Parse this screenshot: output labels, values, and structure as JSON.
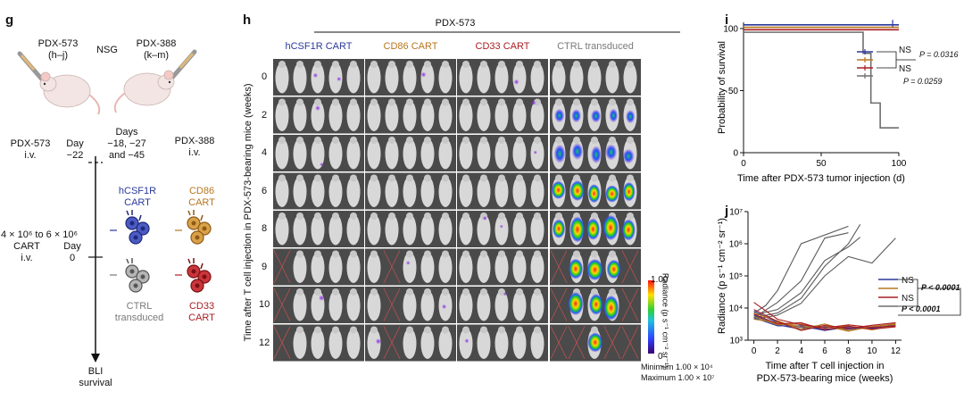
{
  "panel_g": {
    "label": "g",
    "pdx573_name": "PDX-573",
    "pdx573_sub": "(h–j)",
    "strain": "NSG",
    "pdx388_name": "PDX-388",
    "pdx388_sub": "(k–m)",
    "left_line1": "PDX-573",
    "left_line2": "i.v.",
    "day_label": "Day",
    "day_value": "−22",
    "days_label": "Days",
    "days_line2": "−18, −27",
    "days_line3": "and −45",
    "right_line1": "PDX-388",
    "right_line2": "i.v.",
    "dose_line1": "4 × 10⁶ to 6 × 10⁶",
    "dose_line2": "CART",
    "dose_line3": "i.v.",
    "day0_label": "Day",
    "day0_value": "0",
    "hcsf1r_1": "hCSF1R",
    "hcsf1r_2": "CART",
    "cd86_1": "CD86",
    "cd86_2": "CART",
    "ctrl_1": "CTRL",
    "ctrl_2": "transduced",
    "cd33_1": "CD33",
    "cd33_2": "CART",
    "end_1": "BLI",
    "end_2": "survival"
  },
  "panel_h": {
    "label": "h",
    "title": "PDX-573",
    "groups": [
      {
        "name": "hCSF1R CART",
        "color": "#2b3a9c"
      },
      {
        "name": "CD86 CART",
        "color": "#b8761f"
      },
      {
        "name": "CD33 CART",
        "color": "#a91e23"
      },
      {
        "name": "CTRL transduced",
        "color": "#7a7a7a"
      }
    ],
    "weeks": [
      "0",
      "2",
      "4",
      "6",
      "8",
      "9",
      "10",
      "12"
    ],
    "ylabel": "Time after T cell injection in PDX-573-bearing mice (weeks)",
    "colorbar_max": "1.00",
    "colorbar_min": "0",
    "colorbar_label": "Radiance (p s⁻¹ cm⁻² sr⁻¹)",
    "min_text": "Minimum 1.00 × 10⁴",
    "max_text": "Maximum 1.00 × 10⁷"
  },
  "panel_i": {
    "label": "i",
    "ns1": "NS",
    "ns2": "NS",
    "p1": "P = 0.0316",
    "p2": "P = 0.0259"
  },
  "panel_j": {
    "label": "j",
    "ns1": "NS",
    "ns2": "NS",
    "p1": "P < 0.0001",
    "p2": "P < 0.0001"
  },
  "colors": {
    "hcsf1r": "#2b3a9c",
    "cd86": "#b8761f",
    "cd33": "#a91e23",
    "ctrl": "#6e6e6e"
  },
  "chart_data": [
    {
      "type": "line",
      "title": "",
      "xlabel": "Time after PDX-573 tumor injection (d)",
      "ylabel": "Probability of survival",
      "xlim": [
        0,
        100
      ],
      "ylim": [
        0,
        105
      ],
      "xticks": [
        "0",
        "50",
        "100"
      ],
      "yticks": [
        "0",
        "50",
        "100"
      ],
      "series": [
        {
          "name": "hCSF1R CART",
          "color": "#2b3a9c",
          "x": [
            0,
            100
          ],
          "y": [
            103,
            103
          ]
        },
        {
          "name": "CD86 CART",
          "color": "#b8761f",
          "x": [
            0,
            100
          ],
          "y": [
            101,
            101
          ]
        },
        {
          "name": "CD33 CART",
          "color": "#a91e23",
          "x": [
            0,
            100
          ],
          "y": [
            99,
            99
          ]
        },
        {
          "name": "CTRL transduced",
          "color": "#6e6e6e",
          "x": [
            0,
            77,
            77,
            82,
            82,
            88,
            88,
            100
          ],
          "y": [
            97,
            97,
            80,
            80,
            40,
            40,
            20,
            20
          ]
        }
      ]
    },
    {
      "type": "line",
      "title": "",
      "xlabel": "Time after T cell injection in PDX-573-bearing mice (weeks)",
      "ylabel": "Radiance (p s⁻¹ cm⁻² sr⁻¹)",
      "yscale": "log",
      "xlim": [
        -0.5,
        12.5
      ],
      "ylim": [
        1000,
        10000000
      ],
      "xticks": [
        "0",
        "2",
        "4",
        "6",
        "8",
        "10",
        "12"
      ],
      "yticks": [
        "10³",
        "10⁴",
        "10⁵",
        "10⁶",
        "10⁷"
      ],
      "series": [
        {
          "name": "CTRL transduced",
          "color": "#5a5a5a",
          "x": [
            0,
            1,
            2,
            4,
            8
          ],
          "y": [
            7000,
            12000,
            35000,
            1000000,
            3500000
          ]
        },
        {
          "name": "CTRL transduced",
          "color": "#5a5a5a",
          "x": [
            0,
            2,
            4,
            6,
            8
          ],
          "y": [
            5000,
            15000,
            70000,
            1500000,
            2200000
          ]
        },
        {
          "name": "CTRL transduced",
          "color": "#5a5a5a",
          "x": [
            0,
            2,
            4,
            6,
            8,
            9
          ],
          "y": [
            5000,
            7000,
            20000,
            200000,
            1000000,
            4000000
          ]
        },
        {
          "name": "CTRL transduced",
          "color": "#5a5a5a",
          "x": [
            0,
            2,
            4,
            6,
            8,
            10,
            12
          ],
          "y": [
            4500,
            6000,
            14000,
            100000,
            400000,
            250000,
            1500000
          ]
        },
        {
          "name": "CTRL transduced",
          "color": "#5a5a5a",
          "x": [
            0,
            2,
            4,
            6,
            8,
            9
          ],
          "y": [
            6000,
            9000,
            30000,
            300000,
            800000,
            1600000
          ]
        },
        {
          "name": "hCSF1R CART",
          "color": "#2b3a9c",
          "x": [
            0,
            2,
            4,
            6,
            8,
            10,
            12
          ],
          "y": [
            8000,
            3500,
            2500,
            2200,
            2400,
            2300,
            3000
          ]
        },
        {
          "name": "hCSF1R CART",
          "color": "#2b3a9c",
          "x": [
            0,
            2,
            4,
            6,
            8,
            10,
            12
          ],
          "y": [
            6000,
            3000,
            2200,
            2600,
            2200,
            2600,
            3200
          ]
        },
        {
          "name": "hCSF1R CART",
          "color": "#2b3a9c",
          "x": [
            0,
            2,
            4,
            6,
            8,
            10,
            12
          ],
          "y": [
            5000,
            2800,
            2800,
            2000,
            2600,
            2400,
            2700
          ]
        },
        {
          "name": "CD86 CART",
          "color": "#b8761f",
          "x": [
            0,
            2,
            4,
            6,
            8,
            10,
            12
          ],
          "y": [
            7000,
            4000,
            2200,
            3200,
            2000,
            2600,
            3300
          ]
        },
        {
          "name": "CD86 CART",
          "color": "#b8761f",
          "x": [
            0,
            2,
            4,
            6,
            8,
            10,
            12
          ],
          "y": [
            5500,
            3000,
            3200,
            2400,
            2800,
            2100,
            2900
          ]
        },
        {
          "name": "CD86 CART",
          "color": "#b8761f",
          "x": [
            0,
            2,
            4,
            6,
            8,
            10,
            12
          ],
          "y": [
            4500,
            3500,
            2600,
            2800,
            1900,
            2700,
            3100
          ]
        },
        {
          "name": "CD33 CART",
          "color": "#a91e23",
          "x": [
            0,
            2,
            4,
            6,
            8,
            10,
            12
          ],
          "y": [
            15000,
            4500,
            3000,
            2400,
            3000,
            2500,
            2800
          ]
        },
        {
          "name": "CD33 CART",
          "color": "#a91e23",
          "x": [
            0,
            2,
            4,
            6,
            8,
            10,
            12
          ],
          "y": [
            9000,
            3800,
            2000,
            2900,
            2300,
            2900,
            3500
          ]
        },
        {
          "name": "CD33 CART",
          "color": "#a91e23",
          "x": [
            0,
            2,
            4,
            6,
            8,
            10,
            12
          ],
          "y": [
            6500,
            3200,
            3500,
            2100,
            2700,
            2200,
            2600
          ]
        }
      ]
    }
  ]
}
